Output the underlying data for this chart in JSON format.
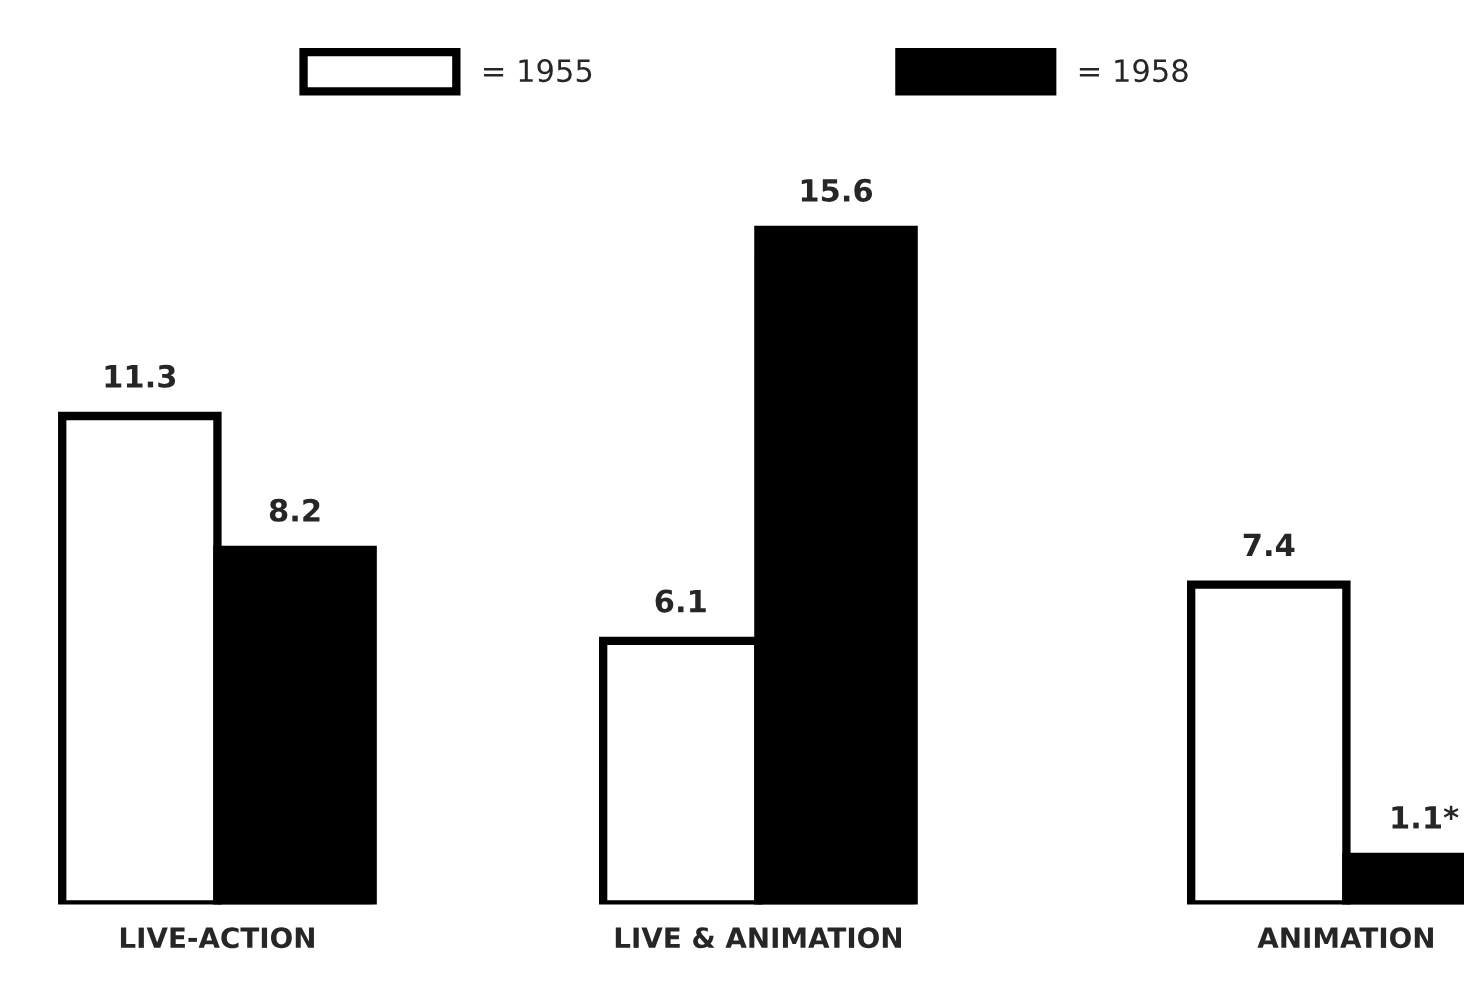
{
  "chart_data": {
    "type": "bar",
    "categories": [
      "LIVE-ACTION",
      "LIVE & ANIMATION",
      "ANIMATION"
    ],
    "series": [
      {
        "name": "= 1955",
        "color": "#ffffff",
        "values": [
          11.3,
          6.1,
          7.4
        ],
        "value_labels": [
          "11.3",
          "6.1",
          "7.4"
        ]
      },
      {
        "name": "= 1958",
        "color": "#000000",
        "values": [
          8.2,
          15.6,
          1.1
        ],
        "value_labels": [
          "8.2",
          "15.6",
          "1.1*"
        ]
      }
    ],
    "legend": "top",
    "grid": false
  }
}
